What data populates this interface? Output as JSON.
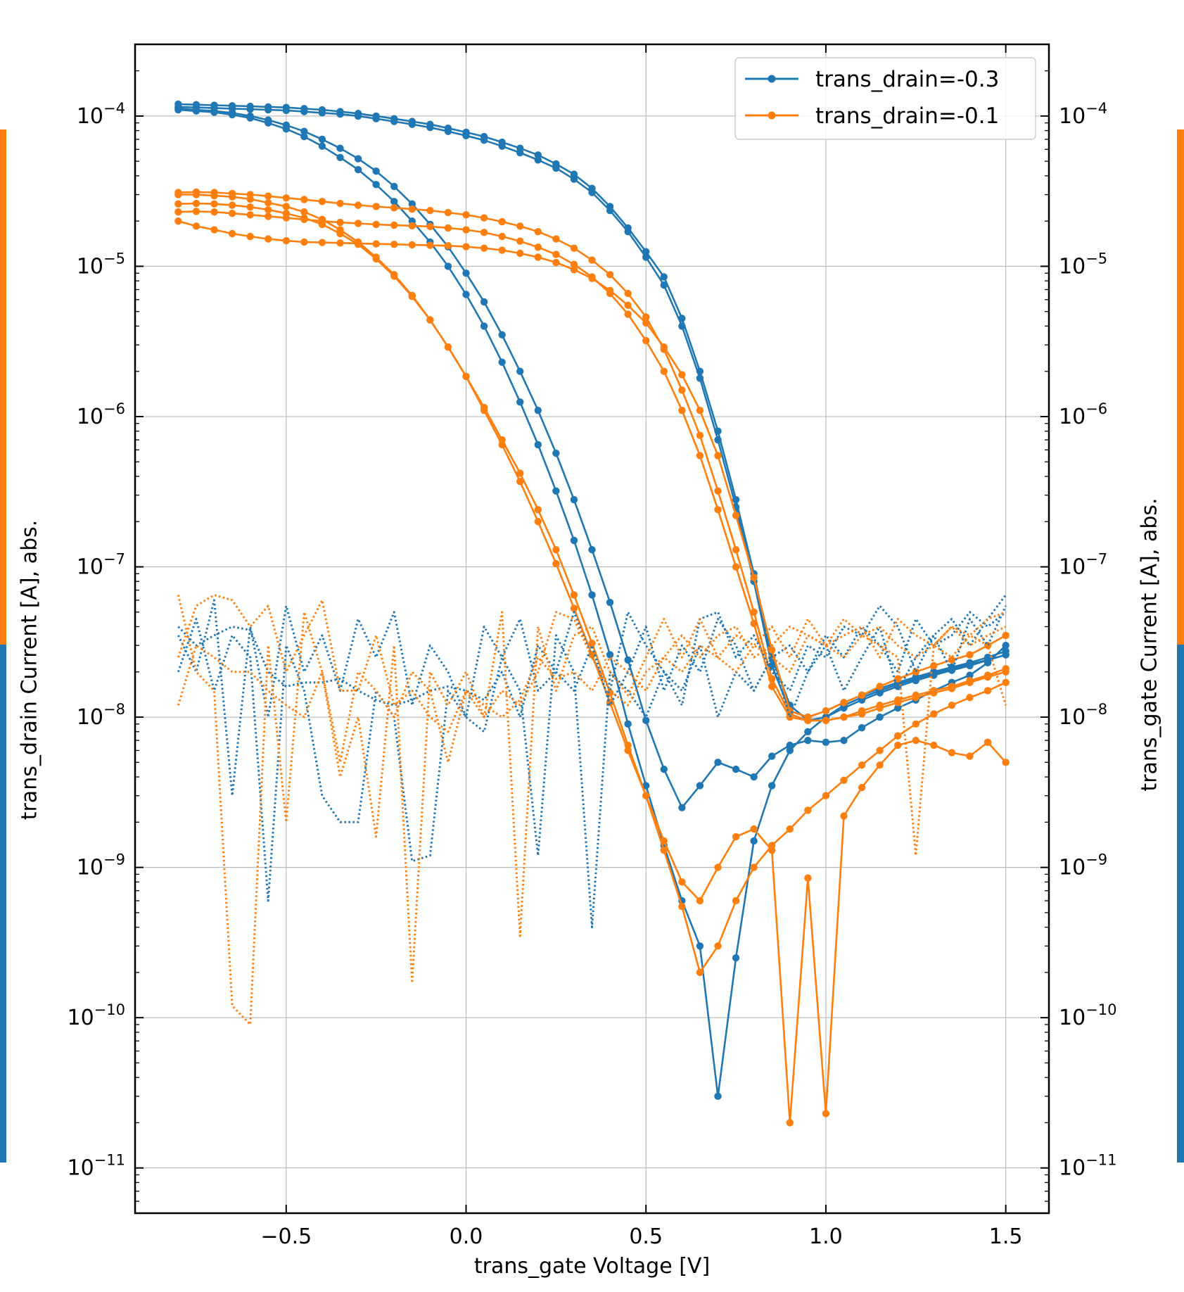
{
  "chart_data": {
    "type": "line",
    "xlabel": "trans_gate Voltage [V]",
    "ylabel_left": "trans_drain Current [A], abs.",
    "ylabel_right": "trans_gate Current [A], abs.",
    "xlim": [
      -0.92,
      1.62
    ],
    "ylim": [
      5e-12,
      0.0003
    ],
    "yscale": "log",
    "grid": true,
    "legend_position": "top-right",
    "x_ticks": [
      -0.5,
      0.0,
      0.5,
      1.0,
      1.5
    ],
    "x_tick_labels": [
      "−0.5",
      "0.0",
      "0.5",
      "1.0",
      "1.5"
    ],
    "y_ticks": [
      1e-11,
      1e-10,
      1e-09,
      1e-08,
      1e-07,
      1e-06,
      1e-05,
      0.0001
    ],
    "y_tick_exponents": [
      "−11",
      "−10",
      "−9",
      "−8",
      "−7",
      "−6",
      "−5",
      "−4"
    ],
    "y_tick_base": "10",
    "colors": {
      "series_a": "#1f77b4",
      "series_b": "#ff7f0e",
      "grid": "#b0b0b0"
    },
    "x": [
      -0.8,
      -0.75,
      -0.7,
      -0.65,
      -0.6,
      -0.55,
      -0.5,
      -0.45,
      -0.4,
      -0.35,
      -0.3,
      -0.25,
      -0.2,
      -0.15,
      -0.1,
      -0.05,
      0.0,
      0.05,
      0.1,
      0.15,
      0.2,
      0.25,
      0.3,
      0.35,
      0.4,
      0.45,
      0.5,
      0.55,
      0.6,
      0.65,
      0.7,
      0.75,
      0.8,
      0.85,
      0.9,
      0.95,
      1.0,
      1.05,
      1.1,
      1.15,
      1.2,
      1.25,
      1.3,
      1.35,
      1.4,
      1.45,
      1.5
    ],
    "legend": [
      {
        "label": "trans_drain=-0.3",
        "color": "#1f77b4"
      },
      {
        "label": "trans_drain=-0.1",
        "color": "#ff7f0e"
      }
    ],
    "series": [
      {
        "name": "trans_drain=-0.3",
        "color": "#1f77b4",
        "style": "solid",
        "values": [
          0.00012,
          0.000119,
          0.000118,
          0.000117,
          0.000116,
          0.000115,
          0.000114,
          0.000112,
          0.00011,
          0.000107,
          0.000104,
          0.0001,
          9.6e-05,
          9.2e-05,
          8.8e-05,
          8.3e-05,
          7.8e-05,
          7.3e-05,
          6.7e-05,
          6.1e-05,
          5.5e-05,
          4.8e-05,
          4.1e-05,
          3.3e-05,
          2.5e-05,
          1.8e-05,
          1.25e-05,
          8.5e-06,
          4.5e-06,
          2e-06,
          8e-07,
          2.8e-07,
          9e-08,
          2.5e-08,
          1.2e-08,
          9.5e-09,
          1e-08,
          1.15e-08,
          1.3e-08,
          1.45e-08,
          1.6e-08,
          1.75e-08,
          1.9e-08,
          2.05e-08,
          2.2e-08,
          2.4e-08,
          2.6e-08
        ]
      },
      {
        "name": "trans_drain=-0.3",
        "color": "#1f77b4",
        "style": "solid",
        "values": [
          0.000115,
          0.000114,
          0.000113,
          0.000112,
          0.000111,
          0.00011,
          0.000109,
          0.000107,
          0.000105,
          0.000103,
          0.0001,
          9.6e-05,
          9.2e-05,
          8.8e-05,
          8.4e-05,
          7.9e-05,
          7.4e-05,
          6.9e-05,
          6.3e-05,
          5.7e-05,
          5.1e-05,
          4.5e-05,
          3.8e-05,
          3.1e-05,
          2.35e-05,
          1.7e-05,
          1.15e-05,
          7.5e-06,
          4e-06,
          1.8e-06,
          7e-07,
          2.5e-07,
          8e-08,
          2.2e-08,
          1.1e-08,
          1e-08,
          1.1e-08,
          1.25e-08,
          1.4e-08,
          1.55e-08,
          1.7e-08,
          1.85e-08,
          2e-08,
          2.15e-08,
          2.3e-08,
          2.5e-08,
          2.75e-08
        ]
      },
      {
        "name": "trans_drain=-0.3",
        "color": "#1f77b4",
        "style": "solid",
        "values": [
          0.00011,
          0.000108,
          0.000106,
          0.000102,
          9.7e-05,
          9e-05,
          8.2e-05,
          7.3e-05,
          6.3e-05,
          5.3e-05,
          4.4e-05,
          3.5e-05,
          2.7e-05,
          2e-05,
          1.45e-05,
          1e-05,
          6.5e-06,
          4e-06,
          2.3e-06,
          1.25e-06,
          6.5e-07,
          3.2e-07,
          1.5e-07,
          6.5e-08,
          2.6e-08,
          9e-09,
          3.5e-09,
          1.4e-09,
          6e-10,
          3e-10,
          3e-11,
          2.5e-10,
          1.5e-09,
          3.5e-09,
          6e-09,
          8e-09,
          1e-08,
          1.2e-08,
          1.35e-08,
          1.5e-08,
          1.65e-08,
          1.8e-08,
          1.95e-08,
          2.1e-08,
          2.25e-08,
          2.4e-08,
          2.6e-08
        ]
      },
      {
        "name": "trans_drain=-0.3",
        "color": "#1f77b4",
        "style": "solid",
        "values": [
          0.000112,
          0.00011,
          0.000108,
          0.000105,
          0.0001,
          9.4e-05,
          8.7e-05,
          7.9e-05,
          7e-05,
          6.1e-05,
          5.2e-05,
          4.3e-05,
          3.4e-05,
          2.6e-05,
          1.9e-05,
          1.35e-05,
          9e-06,
          5.8e-06,
          3.5e-06,
          2e-06,
          1.1e-06,
          5.7e-07,
          2.8e-07,
          1.3e-07,
          5.8e-08,
          2.4e-08,
          9.5e-09,
          4.5e-09,
          2.5e-09,
          3.5e-09,
          5e-09,
          4.5e-09,
          4e-09,
          5.5e-09,
          6.5e-09,
          7e-09,
          6.8e-09,
          7e-09,
          8.5e-09,
          1e-08,
          1.15e-08,
          1.3e-08,
          1.5e-08,
          1.7e-08,
          1.9e-08,
          2.3e-08,
          3e-08
        ]
      },
      {
        "name": "trans_drain=-0.1",
        "color": "#ff7f0e",
        "style": "solid",
        "values": [
          3.1e-05,
          3.12e-05,
          3.1e-05,
          3.05e-05,
          3e-05,
          2.93e-05,
          2.85e-05,
          2.78e-05,
          2.7e-05,
          2.62e-05,
          2.55e-05,
          2.5e-05,
          2.45e-05,
          2.4e-05,
          2.35e-05,
          2.28e-05,
          2.2e-05,
          2.1e-05,
          1.98e-05,
          1.85e-05,
          1.7e-05,
          1.52e-05,
          1.32e-05,
          1.1e-05,
          8.8e-06,
          6.6e-06,
          4.6e-06,
          2.8e-06,
          1.5e-06,
          7.5e-07,
          3.2e-07,
          1.3e-07,
          5e-08,
          1.8e-08,
          1.05e-08,
          9.5e-09,
          9.5e-09,
          1e-08,
          1.05e-08,
          1.15e-08,
          1.25e-08,
          1.35e-08,
          1.45e-08,
          1.55e-08,
          1.7e-08,
          1.85e-08,
          2e-08
        ]
      },
      {
        "name": "trans_drain=-0.1",
        "color": "#ff7f0e",
        "style": "solid",
        "values": [
          2.3e-05,
          2.32e-05,
          2.3e-05,
          2.25e-05,
          2.2e-05,
          2.15e-05,
          2.1e-05,
          2.05e-05,
          2e-05,
          1.96e-05,
          1.93e-05,
          1.9e-05,
          1.88e-05,
          1.86e-05,
          1.84e-05,
          1.8e-05,
          1.75e-05,
          1.68e-05,
          1.58e-05,
          1.47e-05,
          1.34e-05,
          1.2e-05,
          1.03e-05,
          8.5e-06,
          6.6e-06,
          4.8e-06,
          3.2e-06,
          2e-06,
          1.1e-06,
          5.5e-07,
          2.4e-07,
          1e-07,
          4.2e-08,
          1.6e-08,
          1e-08,
          9.5e-09,
          9.5e-09,
          1e-08,
          1.1e-08,
          1.2e-08,
          1.3e-08,
          1.4e-08,
          1.5e-08,
          1.6e-08,
          1.75e-08,
          1.9e-08,
          2.1e-08
        ]
      },
      {
        "name": "trans_drain=-0.1",
        "color": "#ff7f0e",
        "style": "solid",
        "values": [
          2e-05,
          1.85e-05,
          1.75e-05,
          1.65e-05,
          1.58e-05,
          1.52e-05,
          1.48e-05,
          1.45e-05,
          1.44e-05,
          1.43e-05,
          1.42e-05,
          1.41e-05,
          1.4e-05,
          1.39e-05,
          1.38e-05,
          1.37e-05,
          1.35e-05,
          1.32e-05,
          1.28e-05,
          1.22e-05,
          1.15e-05,
          1.06e-05,
          9.5e-06,
          8.3e-06,
          6.9e-06,
          5.5e-06,
          4.2e-06,
          2.9e-06,
          1.9e-06,
          1.1e-06,
          5.5e-07,
          2.2e-07,
          8.5e-08,
          2.8e-08,
          1.1e-08,
          1e-08,
          1.1e-08,
          1.25e-08,
          1.4e-08,
          1.6e-08,
          1.8e-08,
          2e-08,
          2.2e-08,
          2.4e-08,
          2.6e-08,
          3e-08,
          3.5e-08
        ]
      },
      {
        "name": "trans_drain=-0.1",
        "color": "#ff7f0e",
        "style": "solid",
        "values": [
          3e-05,
          3e-05,
          2.95e-05,
          2.9e-05,
          2.8e-05,
          2.65e-05,
          2.5e-05,
          2.3e-05,
          2.05e-05,
          1.75e-05,
          1.45e-05,
          1.15e-05,
          8.8e-06,
          6.4e-06,
          4.4e-06,
          2.9e-06,
          1.85e-06,
          1.1e-06,
          6.5e-07,
          3.7e-07,
          2e-07,
          1.05e-07,
          5.3e-08,
          2.6e-08,
          1.25e-08,
          6e-09,
          3e-09,
          1.5e-09,
          8e-10,
          6e-10,
          1e-09,
          1.6e-09,
          1.8e-09,
          1.3e-09,
          2e-11,
          8.5e-10,
          2.3e-11,
          2.2e-09,
          3.4e-09,
          4.8e-09,
          6.5e-09,
          7e-09,
          6.5e-09,
          5.8e-09,
          5.5e-09,
          6.8e-09,
          5e-09
        ]
      },
      {
        "name": "trans_drain=-0.1",
        "color": "#ff7f0e",
        "style": "solid",
        "values": [
          2.6e-05,
          2.62e-05,
          2.6e-05,
          2.55e-05,
          2.48e-05,
          2.38e-05,
          2.25e-05,
          2.1e-05,
          1.9e-05,
          1.65e-05,
          1.4e-05,
          1.12e-05,
          8.6e-06,
          6.3e-06,
          4.4e-06,
          2.9e-06,
          1.85e-06,
          1.15e-06,
          7e-07,
          4.2e-07,
          2.4e-07,
          1.3e-07,
          6.5e-08,
          3.1e-08,
          1.45e-08,
          6.5e-09,
          3e-09,
          1.3e-09,
          5.5e-10,
          2e-10,
          3e-10,
          6e-10,
          1e-09,
          1.4e-09,
          1.8e-09,
          2.4e-09,
          3e-09,
          3.8e-09,
          4.8e-09,
          6e-09,
          7.5e-09,
          9e-09,
          1.05e-08,
          1.2e-08,
          1.35e-08,
          1.5e-08,
          1.7e-08
        ]
      },
      {
        "name": "trans_drain=-0.3",
        "color": "#1f77b4",
        "style": "dotted",
        "values": [
          3.5e-08,
          2e-08,
          6e-08,
          3e-09,
          4e-08,
          1e-08,
          5.5e-08,
          2e-08,
          3.5e-08,
          1.5e-08,
          4.5e-08,
          2.5e-08,
          5e-08,
          1.2e-08,
          3e-08,
          2e-08,
          1e-08,
          4e-08,
          2.5e-08,
          4.5e-08,
          1.5e-08,
          2e-08,
          5e-08,
          2.5e-08,
          1.5e-08,
          5e-08,
          3e-08,
          2e-08,
          1.2e-08,
          4.5e-08,
          5e-08,
          2.5e-08,
          3.5e-08,
          2e-08,
          1.5e-08,
          3e-08,
          2.5e-08,
          4e-08,
          3.5e-08,
          5.5e-08,
          4e-08,
          2e-08,
          3.5e-08,
          4.5e-08,
          3e-08,
          4.5e-08,
          6.5e-08
        ]
      },
      {
        "name": "trans_drain=-0.3",
        "color": "#1f77b4",
        "style": "dotted",
        "values": [
          2e-08,
          4.5e-08,
          1.5e-08,
          3.5e-08,
          2.5e-08,
          6e-10,
          3e-08,
          1.5e-08,
          3e-09,
          2e-09,
          2e-09,
          1.5e-08,
          1e-08,
          1.1e-09,
          1.2e-09,
          1.5e-08,
          1e-08,
          8e-09,
          2.5e-08,
          1.5e-08,
          1.2e-09,
          3.5e-08,
          2e-08,
          4e-10,
          2e-08,
          1.5e-08,
          1e-08,
          2e-08,
          1.5e-08,
          3e-08,
          1e-08,
          2e-08,
          1.5e-08,
          2.5e-08,
          1e-08,
          2e-08,
          3e-08,
          1.5e-08,
          2.5e-08,
          4e-08,
          1.5e-08,
          2.5e-08,
          3.5e-08,
          2e-08,
          4.5e-08,
          3e-08,
          5.5e-08
        ]
      },
      {
        "name": "trans_drain=-0.3",
        "color": "#1f77b4",
        "style": "dotted",
        "values": [
          4e-08,
          3e-08,
          3.5e-08,
          4e-08,
          3.8e-08,
          2e-08,
          1.6e-08,
          1.7e-08,
          1.7e-08,
          1.8e-08,
          1.5e-08,
          1.3e-08,
          1.2e-08,
          1.3e-08,
          1.5e-08,
          1.6e-08,
          1.5e-08,
          1.3e-08,
          2e-08,
          1e-08,
          3e-08,
          2e-08,
          1.5e-08,
          3e-08,
          1.2e-08,
          2e-08,
          4e-08,
          1.5e-08,
          3e-08,
          2e-08,
          4.5e-08,
          3e-08,
          1.5e-08,
          2.5e-08,
          3e-08,
          2e-08,
          3.5e-08,
          2.5e-08,
          4e-08,
          3e-08,
          2e-08,
          4.5e-08,
          3e-08,
          3.5e-08,
          5e-08,
          4e-08,
          5e-08
        ]
      },
      {
        "name": "trans_drain=-0.1",
        "color": "#ff7f0e",
        "style": "dotted",
        "values": [
          6.5e-08,
          2e-08,
          1.5e-08,
          1.2e-10,
          9e-11,
          3e-08,
          2e-09,
          5e-08,
          2e-08,
          4e-09,
          1e-08,
          1.6e-09,
          3e-08,
          1.7e-10,
          2e-08,
          1.2e-08,
          2e-08,
          1e-08,
          5e-08,
          3.5e-10,
          4e-08,
          1.5e-08,
          3.5e-08,
          4e-08,
          2e-08,
          1.4e-08,
          2.5e-08,
          4.5e-08,
          2.5e-08,
          4.5e-08,
          2.5e-08,
          3.5e-08,
          3e-08,
          4e-08,
          2.5e-08,
          4.5e-08,
          3e-08,
          3.5e-08,
          4e-08,
          2.5e-08,
          4.5e-08,
          3.5e-08,
          3e-08,
          4e-08,
          3.5e-08,
          4.5e-08,
          5e-08
        ]
      },
      {
        "name": "trans_drain=-0.1",
        "color": "#ff7f0e",
        "style": "dotted",
        "values": [
          2.5e-08,
          5.5e-08,
          6.5e-08,
          6e-08,
          4e-08,
          5.5e-08,
          2e-08,
          3.5e-08,
          6e-08,
          1.5e-08,
          1.5e-08,
          3.5e-08,
          1.2e-08,
          1.5e-08,
          1e-08,
          8e-09,
          1.5e-08,
          1e-08,
          1.5e-08,
          1.2e-08,
          2e-08,
          5e-08,
          4.5e-08,
          2.5e-08,
          1.5e-08,
          1.2e-08,
          2e-08,
          2.5e-08,
          3.5e-08,
          2.5e-08,
          3.5e-08,
          4e-08,
          2.5e-08,
          3e-08,
          4e-08,
          3.5e-08,
          3e-08,
          4.5e-08,
          3.5e-08,
          4e-08,
          3e-08,
          2.5e-08,
          3e-08,
          4e-08,
          3e-08,
          3.5e-08,
          4e-08
        ]
      },
      {
        "name": "trans_drain=-0.1",
        "color": "#ff7f0e",
        "style": "dotted",
        "values": [
          1.2e-08,
          3e-08,
          2.5e-08,
          2e-08,
          2e-08,
          1.5e-08,
          1.2e-08,
          1e-08,
          2e-08,
          5e-09,
          2e-08,
          1.5e-08,
          1e-08,
          2e-08,
          1.5e-08,
          5e-09,
          1.5e-08,
          1.2e-08,
          1e-08,
          1.3e-08,
          2.5e-08,
          1.8e-08,
          2e-08,
          1.5e-08,
          2.5e-08,
          2e-08,
          1.5e-08,
          2.5e-08,
          2e-08,
          3e-08,
          2.5e-08,
          2e-08,
          3e-08,
          2.5e-08,
          2e-08,
          3.5e-08,
          3e-08,
          2.5e-08,
          3.5e-08,
          3e-08,
          2.5e-08,
          1.2e-09,
          3e-08,
          2.5e-08,
          3.5e-08,
          3e-08,
          1.2e-08
        ]
      }
    ]
  }
}
